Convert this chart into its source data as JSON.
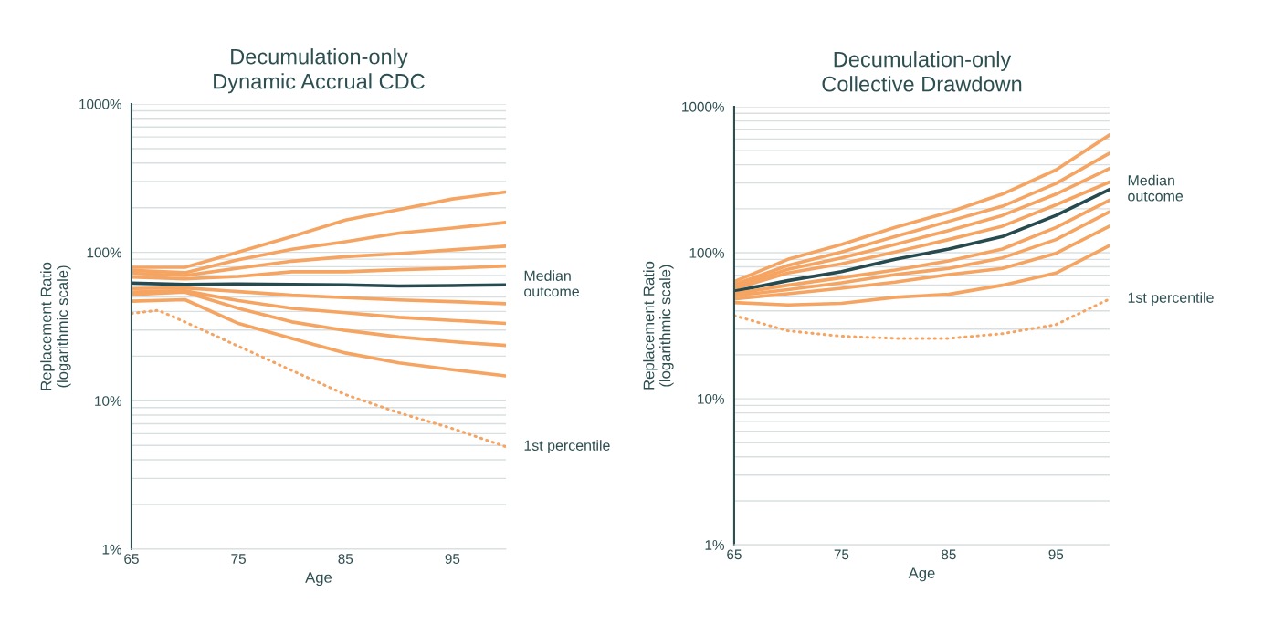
{
  "chart_data": [
    {
      "type": "line",
      "title": "Decumulation-only\nDynamic Accrual CDC",
      "xlabel": "Age",
      "ylabel": "Replacement Ratio\n(logarithmic scale)",
      "x": [
        65,
        70,
        75,
        80,
        85,
        90,
        95,
        100
      ],
      "log": "y",
      "grid": "y",
      "xlim": [
        65,
        100
      ],
      "xticks": [
        65,
        75,
        85,
        95
      ],
      "ylim": [
        1,
        1000
      ],
      "yticks": [
        {
          "value": 1,
          "label": "1%"
        },
        {
          "value": 10,
          "label": "10%"
        },
        {
          "value": 100,
          "label": "100%"
        },
        {
          "value": 1000,
          "label": "1000%"
        }
      ],
      "series": [
        {
          "color": "#f5a462",
          "values": [
            79.4,
            79.4,
            100.5,
            128,
            165,
            194,
            229,
            255
          ]
        },
        {
          "color": "#f5a462",
          "values": [
            75.7,
            73,
            89.3,
            105,
            118,
            135,
            146,
            159
          ]
        },
        {
          "color": "#f5a462",
          "values": [
            72.3,
            69.9,
            78.3,
            87.2,
            93.6,
            98.1,
            104,
            110
          ]
        },
        {
          "color": "#f5a462",
          "values": [
            68.3,
            66.4,
            68.9,
            74,
            74,
            76.4,
            78.3,
            80.9
          ]
        },
        {
          "color": "#264a4d",
          "values": [
            62.1,
            60.7,
            61.3,
            60.7,
            60.4,
            59.3,
            59.8,
            60.4
          ]
        },
        {
          "color": "#f5a462",
          "values": [
            57.1,
            57.6,
            54.4,
            51.4,
            49.6,
            47.8,
            46.6,
            45.1
          ]
        },
        {
          "color": "#f5a462",
          "values": [
            54,
            55,
            47.3,
            42,
            39.2,
            36.5,
            34.8,
            33.2
          ]
        },
        {
          "color": "#f5a462",
          "values": [
            51.9,
            54,
            42,
            34,
            29.8,
            26.9,
            25,
            23.6
          ]
        },
        {
          "color": "#f5a462",
          "values": [
            46.9,
            48,
            33.2,
            26.3,
            21,
            18,
            16.2,
            14.7
          ]
        },
        {
          "color": "#f5a462",
          "line_style": "dotted",
          "x": [
            65,
            67.5,
            70,
            75,
            80,
            85,
            90,
            95,
            100
          ],
          "values": [
            38.8,
            40.7,
            34,
            23.3,
            16,
            11,
            8.3,
            6.5,
            4.9
          ]
        }
      ],
      "annotations": [
        "Median\noutcome",
        "1st percentile"
      ]
    },
    {
      "type": "line",
      "title": "Decumulation-only\nCollective Drawdown",
      "xlabel": "Age",
      "ylabel": "Replacement Ratio\n(logarithmic scale)",
      "x": [
        65,
        70,
        75,
        80,
        85,
        90,
        95,
        100
      ],
      "log": "y",
      "grid": "y",
      "xlim": [
        65,
        100
      ],
      "xticks": [
        65,
        75,
        85,
        95
      ],
      "ylim": [
        1,
        1000
      ],
      "yticks": [
        {
          "value": 1,
          "label": "1%"
        },
        {
          "value": 10,
          "label": "10%"
        },
        {
          "value": 100,
          "label": "100%"
        },
        {
          "value": 1000,
          "label": "1000%"
        }
      ],
      "series": [
        {
          "color": "#f5a462",
          "values": [
            63.5,
            90,
            114,
            149,
            189,
            252,
            369,
            641
          ]
        },
        {
          "color": "#f5a462",
          "values": [
            60.5,
            81.8,
            101,
            129,
            164,
            208,
            298,
            481
          ]
        },
        {
          "color": "#f5a462",
          "values": [
            58.5,
            76.9,
            92.2,
            114,
            142,
            180,
            252,
            378
          ]
        },
        {
          "color": "#f5a462",
          "values": [
            56.6,
            72.6,
            83.8,
            101,
            123,
            152,
            213,
            305
          ]
        },
        {
          "color": "#264a4d",
          "values": [
            54.4,
            64.4,
            74.3,
            90,
            106,
            129,
            180,
            271
          ]
        },
        {
          "color": "#f5a462",
          "values": [
            52.4,
            59.9,
            67.5,
            76.1,
            87.9,
            106,
            149,
            229
          ]
        },
        {
          "color": "#f5a462",
          "values": [
            50.7,
            55.8,
            62.2,
            70.8,
            78,
            92.2,
            123,
            191
          ]
        },
        {
          "color": "#f5a462",
          "values": [
            48.3,
            52.4,
            57.1,
            62.9,
            70.8,
            78,
            99,
            152
          ]
        },
        {
          "color": "#f5a462",
          "values": [
            45.6,
            43.9,
            45,
            49.5,
            51.9,
            59.9,
            72.6,
            112
          ]
        },
        {
          "color": "#f5a462",
          "line_style": "dotted",
          "values": [
            37.1,
            29.2,
            26.8,
            25.9,
            25.9,
            27.9,
            32.2,
            48.3
          ]
        }
      ],
      "annotations": [
        "Median\noutcome",
        "1st percentile"
      ]
    }
  ]
}
